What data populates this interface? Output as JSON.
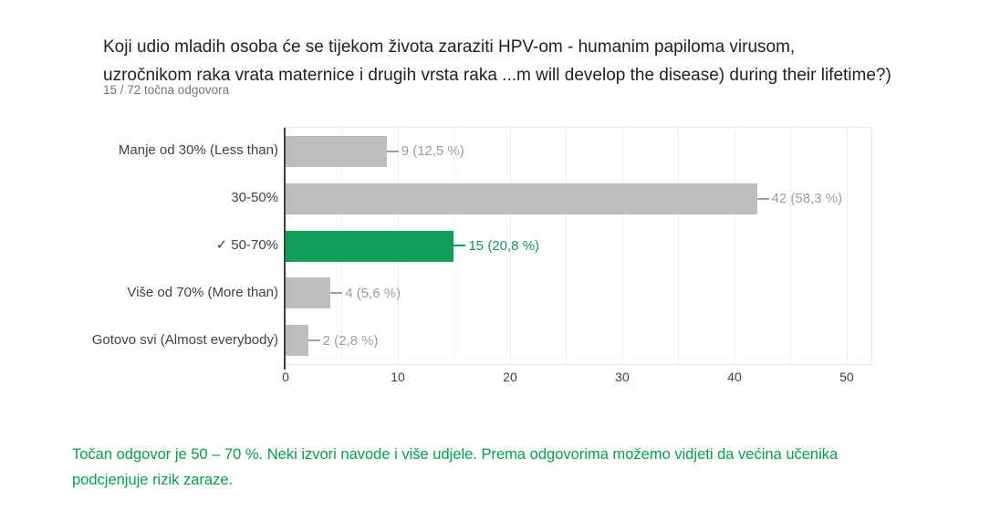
{
  "header": {
    "title_lines": [
      "Koji udio mladih osoba će se tijekom života zaraziti HPV-om - humanim papiloma virusom,",
      "uzročnikom raka vrata maternice i drugih vrsta raka ...m will develop the disease) during their lifetime?)"
    ],
    "subtitle": "15 / 72 točna odgovora"
  },
  "chart_data": {
    "type": "bar",
    "orientation": "horizontal",
    "title": "Koji udio mladih osoba će se tijekom života zaraziti HPV-om - humanim papiloma virusom, uzročnikom raka vrata maternice i drugih vrsta raka ...m will develop the disease) during their lifetime?)",
    "subtitle": "15 / 72 točna odgovora",
    "categories": [
      "Manje od 30% (Less than)",
      "30-50%",
      "✓ 50-70%",
      "Više od 70% (More than)",
      "Gotovo svi (Almost everybody)"
    ],
    "values": [
      9,
      42,
      15,
      4,
      2
    ],
    "value_labels": [
      "9 (12,5 %)",
      "42 (58,3 %)",
      "15 (20,8 %)",
      "4 (5,6 %)",
      "2 (2,8 %)"
    ],
    "correct_index": 2,
    "x_ticks": [
      0,
      10,
      20,
      30,
      40,
      50
    ],
    "xlim": [
      0,
      52.2
    ],
    "gridline_step": 5,
    "xlabel": "",
    "ylabel": "",
    "grid": "vertical-minor",
    "legend": "none"
  },
  "colors": {
    "bar_gray": "#bdbdbd",
    "bar_green": "#109d58",
    "value_label_gray": "#9e9e9e",
    "value_label_green": "#109d58",
    "note_green": "#00a24f",
    "axis": "#424242"
  },
  "footer": {
    "note_lines": [
      "Točan odgovor je 50 – 70 %. Neki izvori navode i više udjele. Prema odgovorima možemo vidjeti da većina učenika",
      "podcjenjuje rizik zaraze."
    ]
  }
}
